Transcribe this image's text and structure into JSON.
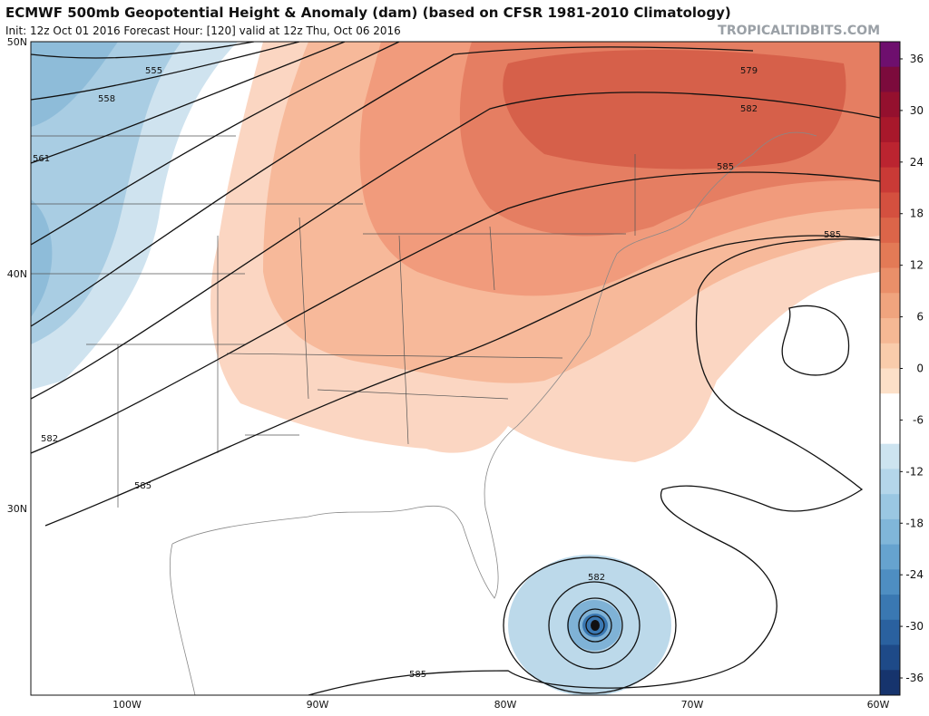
{
  "header": {
    "title": "ECMWF 500mb Geopotential Height & Anomaly (dam) (based on CFSR 1981-2010 Climatology)",
    "subtitle": "Init: 12z Oct 01 2016   Forecast Hour: [120]   valid at 12z Thu, Oct 06 2016",
    "source": "TROPICALTIDBITS.COM"
  },
  "map": {
    "lat_labels": [
      "50N",
      "40N",
      "30N"
    ],
    "lon_labels": [
      "100W",
      "90W",
      "80W",
      "70W",
      "60W"
    ],
    "contour_labels": [
      "555",
      "558",
      "561",
      "579",
      "582",
      "585",
      "585",
      "582",
      "585",
      "582",
      "585"
    ]
  },
  "colorbar": {
    "lim": [
      -38,
      38
    ],
    "ticks": [
      36,
      30,
      24,
      18,
      12,
      6,
      0,
      -6,
      -12,
      -18,
      -24,
      -30,
      -36
    ],
    "colors": [
      "#6e0f6e",
      "#7c0b3c",
      "#94102e",
      "#a8182b",
      "#bb2430",
      "#c93a36",
      "#d4503f",
      "#dc6549",
      "#e37a56",
      "#ea8f69",
      "#f0a47e",
      "#f5b894",
      "#f9ccab",
      "#fce0c8",
      "#ffffff",
      "#ffffff",
      "#cde4f0",
      "#b4d6ea",
      "#9ac7e2",
      "#80b6d9",
      "#66a3cf",
      "#4e8ec2",
      "#3a78b2",
      "#2a619f",
      "#1e4a88",
      "#16346d"
    ]
  }
}
